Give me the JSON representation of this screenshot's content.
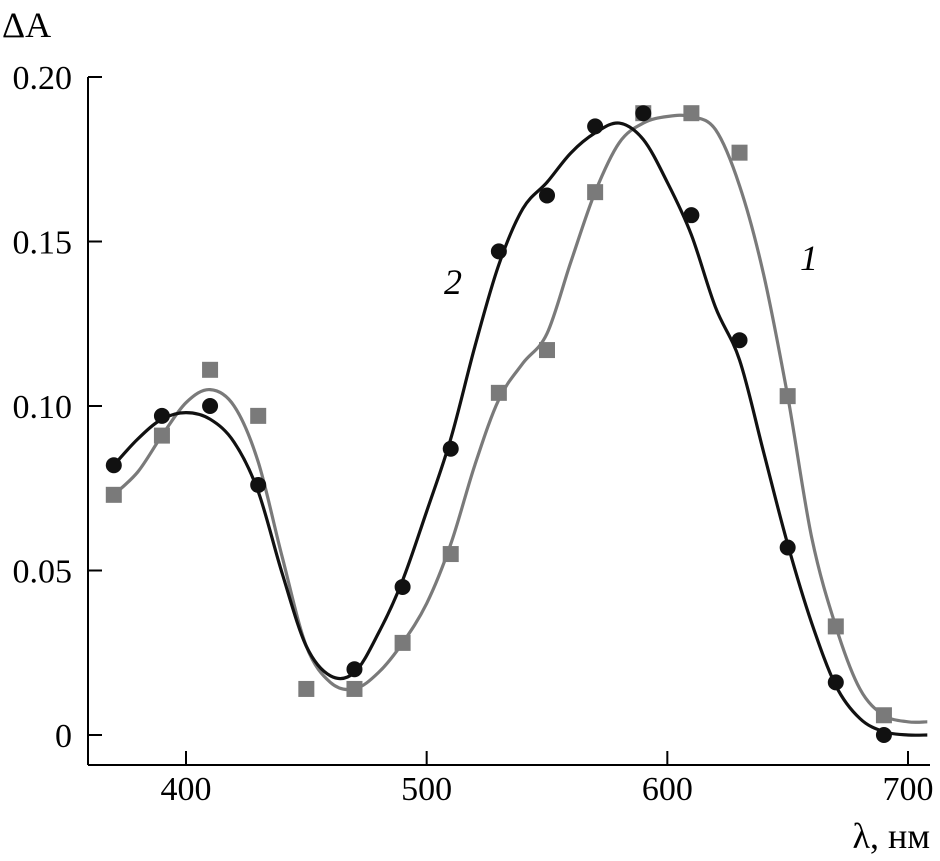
{
  "chart_data": {
    "type": "scatter",
    "ylabel": "ΔA",
    "xlabel": "λ, нм",
    "xlim": [
      360,
      710
    ],
    "ylim": [
      -0.009,
      0.2
    ],
    "xticks": [
      400,
      500,
      600,
      700
    ],
    "xtick_labels": [
      "400",
      "500",
      "600",
      "700"
    ],
    "yticks": [
      0,
      0.05,
      0.1,
      0.15,
      0.2
    ],
    "ytick_labels": [
      "0",
      "0.05",
      "0.10",
      "0.15",
      "0.20"
    ],
    "grid": false,
    "legend": "none",
    "series": [
      {
        "name": "1",
        "marker": "square",
        "color": "#7a7a7a",
        "x": [
          370,
          390,
          410,
          430,
          450,
          470,
          490,
          510,
          530,
          550,
          570,
          590,
          610,
          630,
          650,
          670,
          690
        ],
        "y": [
          0.073,
          0.091,
          0.111,
          0.097,
          0.014,
          0.014,
          0.028,
          0.055,
          0.104,
          0.117,
          0.165,
          0.189,
          0.189,
          0.177,
          0.103,
          0.033,
          0.006
        ],
        "fit_x": [
          370,
          380,
          390,
          400,
          410,
          420,
          430,
          440,
          450,
          460,
          470,
          480,
          490,
          500,
          510,
          520,
          530,
          540,
          550,
          560,
          570,
          580,
          590,
          600,
          610,
          620,
          630,
          640,
          650,
          660,
          670,
          680,
          690,
          700,
          708
        ],
        "fit_y": [
          0.073,
          0.08,
          0.091,
          0.101,
          0.105,
          0.1,
          0.083,
          0.054,
          0.027,
          0.016,
          0.014,
          0.019,
          0.028,
          0.04,
          0.058,
          0.082,
          0.102,
          0.113,
          0.122,
          0.144,
          0.165,
          0.18,
          0.186,
          0.188,
          0.188,
          0.184,
          0.167,
          0.14,
          0.103,
          0.06,
          0.033,
          0.014,
          0.006,
          0.004,
          0.004
        ]
      },
      {
        "name": "2",
        "marker": "circle",
        "color": "#111111",
        "x": [
          370,
          390,
          410,
          430,
          470,
          490,
          510,
          530,
          550,
          570,
          590,
          610,
          630,
          650,
          670,
          690
        ],
        "y": [
          0.082,
          0.097,
          0.1,
          0.076,
          0.02,
          0.045,
          0.087,
          0.147,
          0.164,
          0.185,
          0.189,
          0.158,
          0.12,
          0.057,
          0.016,
          0.0
        ],
        "fit_x": [
          370,
          380,
          390,
          400,
          410,
          420,
          430,
          440,
          450,
          460,
          470,
          480,
          490,
          500,
          510,
          520,
          530,
          540,
          550,
          560,
          570,
          580,
          590,
          600,
          610,
          620,
          630,
          640,
          650,
          660,
          670,
          680,
          690,
          700,
          708
        ],
        "fit_y": [
          0.082,
          0.09,
          0.096,
          0.098,
          0.096,
          0.089,
          0.074,
          0.049,
          0.027,
          0.018,
          0.019,
          0.031,
          0.047,
          0.068,
          0.09,
          0.118,
          0.143,
          0.16,
          0.168,
          0.177,
          0.183,
          0.186,
          0.181,
          0.168,
          0.152,
          0.13,
          0.114,
          0.086,
          0.058,
          0.034,
          0.015,
          0.005,
          0.001,
          0.0,
          0.0
        ]
      }
    ]
  }
}
